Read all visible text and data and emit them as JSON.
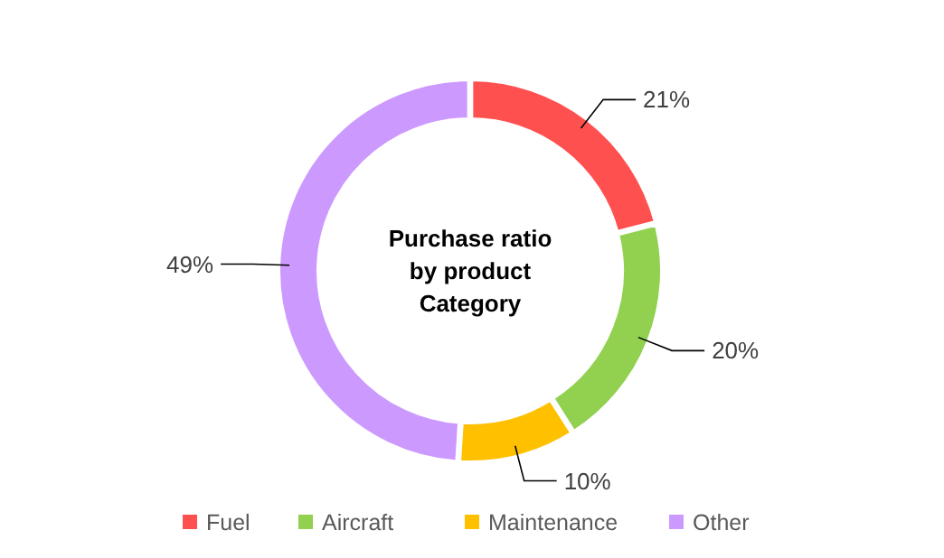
{
  "chart_data": {
    "type": "donut",
    "title": "Purchase ratio\nby product\nCategory",
    "categories": [
      "Fuel",
      "Aircraft",
      "Maintenance",
      "Other"
    ],
    "values": [
      21,
      20,
      10,
      49
    ],
    "colors": [
      "#ff5050",
      "#92d050",
      "#ffc000",
      "#cc99ff"
    ],
    "value_labels": [
      "21%",
      "20%",
      "10%",
      "49%"
    ],
    "legend": "bottom"
  }
}
